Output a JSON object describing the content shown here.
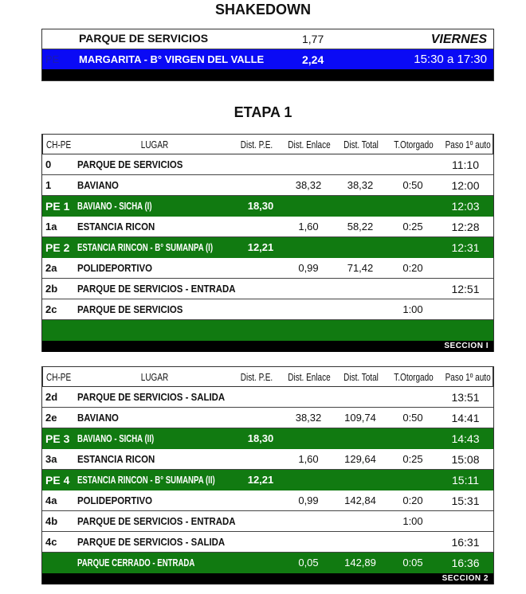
{
  "shakedown": {
    "title": "SHAKEDOWN",
    "row1": {
      "lugar": "PARQUE DE SERVICIOS",
      "dist": "1,77",
      "day": "VIERNES"
    },
    "row2": {
      "code": "PE",
      "lugar": "MARGARITA - B° VIRGEN DEL VALLE",
      "dist": "2,24",
      "time": "15:30 a 17:30"
    }
  },
  "etapa_title": "ETAPA 1",
  "headers": [
    "CH-PE",
    "LUGAR",
    "Dist. P.E.",
    "Dist. Enlace",
    "Dist. Total",
    "T.Otorgado",
    "Paso 1º auto"
  ],
  "sections": [
    {
      "label": "SECCION I",
      "rows": [
        [
          "0",
          "PARQUE DE SERVICIOS",
          "",
          "",
          "",
          "",
          "11:10",
          false
        ],
        [
          "1",
          "BAVIANO",
          "",
          "38,32",
          "38,32",
          "0:50",
          "12:00",
          false
        ],
        [
          "PE 1",
          "BAVIANO - SICHA      (I)",
          "18,30",
          "",
          "",
          "",
          "12:03",
          true
        ],
        [
          "1a",
          "ESTANCIA RICON",
          "",
          "1,60",
          "58,22",
          "0:25",
          "12:28",
          false
        ],
        [
          "PE 2",
          "ESTANCIA RINCON - B° SUMANPA   (I)",
          "12,21",
          "",
          "",
          "",
          "12:31",
          true
        ],
        [
          "2a",
          "POLIDEPORTIVO",
          "",
          "0,99",
          "71,42",
          "0:20",
          "",
          false
        ],
        [
          "2b",
          "PARQUE DE SERVICIOS - ENTRADA",
          "",
          "",
          "",
          "",
          "12:51",
          false
        ],
        [
          "2c",
          "PARQUE DE SERVICIOS",
          "",
          "",
          "",
          "1:00",
          "",
          false
        ],
        [
          "",
          "",
          "",
          "",
          "",
          "",
          "",
          true
        ]
      ]
    },
    {
      "label": "SECCION 2",
      "rows": [
        [
          "2d",
          "PARQUE DE SERVICIOS - SALIDA",
          "",
          "",
          "",
          "",
          "13:51",
          false
        ],
        [
          "2e",
          "BAVIANO",
          "",
          "38,32",
          "109,74",
          "0:50",
          "14:41",
          false
        ],
        [
          "PE 3",
          "BAVIANO - SICHA      (II)",
          "18,30",
          "",
          "",
          "",
          "14:43",
          true
        ],
        [
          "3a",
          "ESTANCIA RICON",
          "",
          "1,60",
          "129,64",
          "0:25",
          "15:08",
          false
        ],
        [
          "PE 4",
          "ESTANCIA RINCON - B° SUMANPA   (II)",
          "12,21",
          "",
          "",
          "",
          "15:11",
          true
        ],
        [
          "4a",
          "POLIDEPORTIVO",
          "",
          "0,99",
          "142,84",
          "0:20",
          "15:31",
          false
        ],
        [
          "4b",
          "PARQUE DE SERVICIOS - ENTRADA",
          "",
          "",
          "",
          "1:00",
          "",
          false
        ],
        [
          "4c",
          "PARQUE DE SERVICIOS - SALIDA",
          "",
          "",
          "",
          "",
          "16:31",
          false
        ],
        [
          "",
          "PARQUE CERRADO - ENTRADA",
          "",
          "0,05",
          "142,89",
          "0:05",
          "16:36",
          true
        ]
      ]
    }
  ],
  "colors": {
    "green": "#117a11",
    "blue": "#0a0af5",
    "black": "#000000"
  }
}
